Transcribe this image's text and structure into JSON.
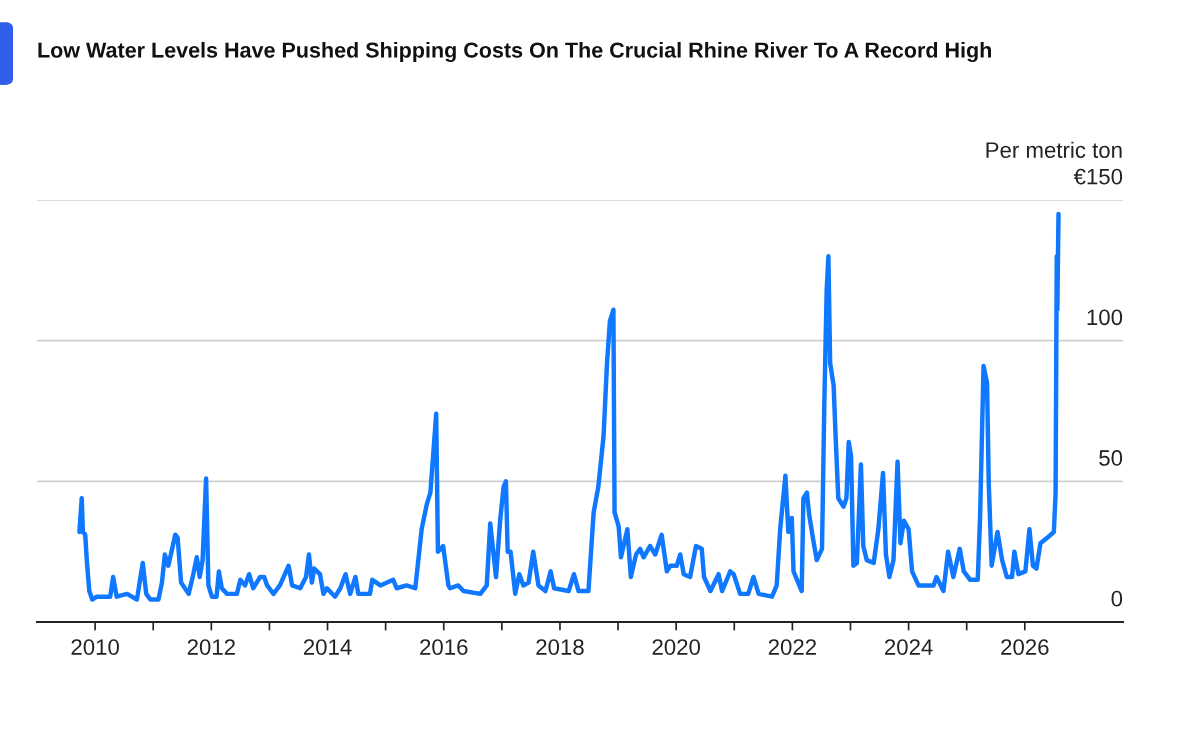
{
  "chart_data": {
    "type": "line",
    "title": "Low Water Levels Have Pushed Shipping Costs On The Crucial Rhine River To A Record High",
    "ylabel": "Per metric ton",
    "x": [
      2009.73,
      2009.77,
      2009.79,
      2009.83,
      2009.86,
      2009.9,
      2009.95,
      2010.03,
      2010.26,
      2010.31,
      2010.37,
      2010.55,
      2010.72,
      2010.82,
      2010.88,
      2010.95,
      2011.09,
      2011.15,
      2011.2,
      2011.26,
      2011.38,
      2011.42,
      2011.48,
      2011.61,
      2011.69,
      2011.75,
      2011.8,
      2011.85,
      2011.91,
      2011.95,
      2012.01,
      2012.09,
      2012.13,
      2012.18,
      2012.27,
      2012.44,
      2012.5,
      2012.58,
      2012.65,
      2012.72,
      2012.84,
      2012.91,
      2012.96,
      2013.07,
      2013.18,
      2013.33,
      2013.39,
      2013.53,
      2013.63,
      2013.68,
      2013.73,
      2013.77,
      2013.87,
      2013.93,
      2013.99,
      2014.13,
      2014.22,
      2014.31,
      2014.39,
      2014.48,
      2014.53,
      2014.73,
      2014.77,
      2014.91,
      2015.13,
      2015.19,
      2015.36,
      2015.51,
      2015.62,
      2015.71,
      2015.77,
      2015.87,
      2015.9,
      2015.99,
      2016.08,
      2016.11,
      2016.25,
      2016.34,
      2016.63,
      2016.74,
      2016.8,
      2016.9,
      2016.97,
      2017.03,
      2017.07,
      2017.1,
      2017.15,
      2017.23,
      2017.3,
      2017.37,
      2017.46,
      2017.54,
      2017.63,
      2017.75,
      2017.84,
      2017.9,
      2018.15,
      2018.24,
      2018.32,
      2018.49,
      2018.58,
      2018.66,
      2018.75,
      2018.81,
      2018.86,
      2018.92,
      2018.94,
      2019.01,
      2019.05,
      2019.16,
      2019.22,
      2019.31,
      2019.38,
      2019.44,
      2019.55,
      2019.64,
      2019.75,
      2019.84,
      2019.9,
      2020.01,
      2020.07,
      2020.13,
      2020.24,
      2020.34,
      2020.44,
      2020.48,
      2020.59,
      2020.73,
      2020.79,
      2020.93,
      2020.99,
      2021.1,
      2021.24,
      2021.33,
      2021.42,
      2021.65,
      2021.73,
      2021.79,
      2021.88,
      2021.93,
      2021.99,
      2022.02,
      2022.08,
      2022.16,
      2022.19,
      2022.25,
      2022.29,
      2022.36,
      2022.42,
      2022.51,
      2022.55,
      2022.59,
      2022.62,
      2022.65,
      2022.71,
      2022.74,
      2022.79,
      2022.88,
      2022.93,
      2022.97,
      2023.01,
      2023.05,
      2023.11,
      2023.18,
      2023.22,
      2023.28,
      2023.4,
      2023.48,
      2023.56,
      2023.61,
      2023.67,
      2023.74,
      2023.81,
      2023.86,
      2023.92,
      2024.0,
      2024.06,
      2024.17,
      2024.43,
      2024.48,
      2024.6,
      2024.68,
      2024.77,
      2024.88,
      2024.95,
      2025.06,
      2025.19,
      2025.23,
      2025.29,
      2025.35,
      2025.38,
      2025.43,
      2025.53,
      2025.61,
      2025.69,
      2025.78,
      2025.82,
      2025.89,
      2026.01,
      2026.08,
      2026.14,
      2026.2,
      2026.27,
      2026.39,
      2026.5,
      2026.53,
      2026.55,
      2026.56,
      2026.58
    ],
    "series": [
      {
        "color": "#0f78ff",
        "values": [
          32,
          44,
          32,
          31,
          21,
          11,
          8,
          9,
          9,
          16,
          9,
          10,
          8,
          21,
          10,
          8,
          8,
          14,
          24,
          20,
          31,
          30,
          14,
          10,
          17,
          23,
          16,
          22,
          51,
          13,
          9,
          9,
          18,
          12,
          10,
          10,
          15,
          13,
          17,
          12,
          16,
          16,
          13,
          10,
          13,
          20,
          13,
          12,
          16,
          24,
          14,
          19,
          17,
          10,
          12,
          9,
          12,
          17,
          10,
          16,
          10,
          10,
          15,
          13,
          15,
          12,
          13,
          12,
          33,
          42,
          46,
          74,
          25,
          27,
          13,
          12,
          13,
          11,
          10,
          13,
          35,
          16,
          36,
          48,
          50,
          25,
          25,
          10,
          17,
          13,
          14,
          25,
          13,
          11,
          18,
          12,
          11,
          17,
          11,
          11,
          39,
          48,
          66,
          92,
          107,
          111,
          39,
          34,
          23,
          33,
          16,
          24,
          26,
          23,
          27,
          24,
          31,
          18,
          20,
          20,
          24,
          17,
          16,
          27,
          26,
          16,
          11,
          17,
          11,
          18,
          17,
          10,
          10,
          16,
          10,
          9,
          13,
          33,
          52,
          32,
          37,
          18,
          15,
          11,
          44,
          46,
          38,
          29,
          22,
          26,
          78,
          118,
          130,
          92,
          84,
          68,
          44,
          41,
          44,
          64,
          59,
          20,
          21,
          56,
          27,
          22,
          21,
          33,
          53,
          24,
          16,
          22,
          57,
          28,
          36,
          33,
          18,
          13,
          13,
          16,
          11,
          25,
          16,
          26,
          18,
          15,
          15,
          37,
          91,
          85,
          49,
          20,
          32,
          22,
          16,
          16,
          25,
          17,
          18,
          33,
          20,
          19,
          28,
          30,
          32,
          46,
          130,
          111,
          145
        ]
      }
    ],
    "xlim": [
      2009.0,
      2027.69
    ],
    "xticks": [
      2010,
      {
        "value": 2011,
        "label": null
      },
      2012,
      {
        "value": 2013,
        "label": null
      },
      2014,
      {
        "value": 2015,
        "label": null
      },
      2016,
      {
        "value": 2017,
        "label": null
      },
      2018,
      {
        "value": 2019,
        "label": null
      },
      2020,
      {
        "value": 2021,
        "label": null
      },
      2022,
      {
        "value": 2023,
        "label": null
      },
      2024,
      {
        "value": 2025,
        "label": null
      },
      2026
    ],
    "ylim": [
      0,
      150
    ],
    "yticks": [
      0,
      50,
      100,
      {
        "value": 150,
        "label": "€150"
      }
    ],
    "grid": "y"
  }
}
